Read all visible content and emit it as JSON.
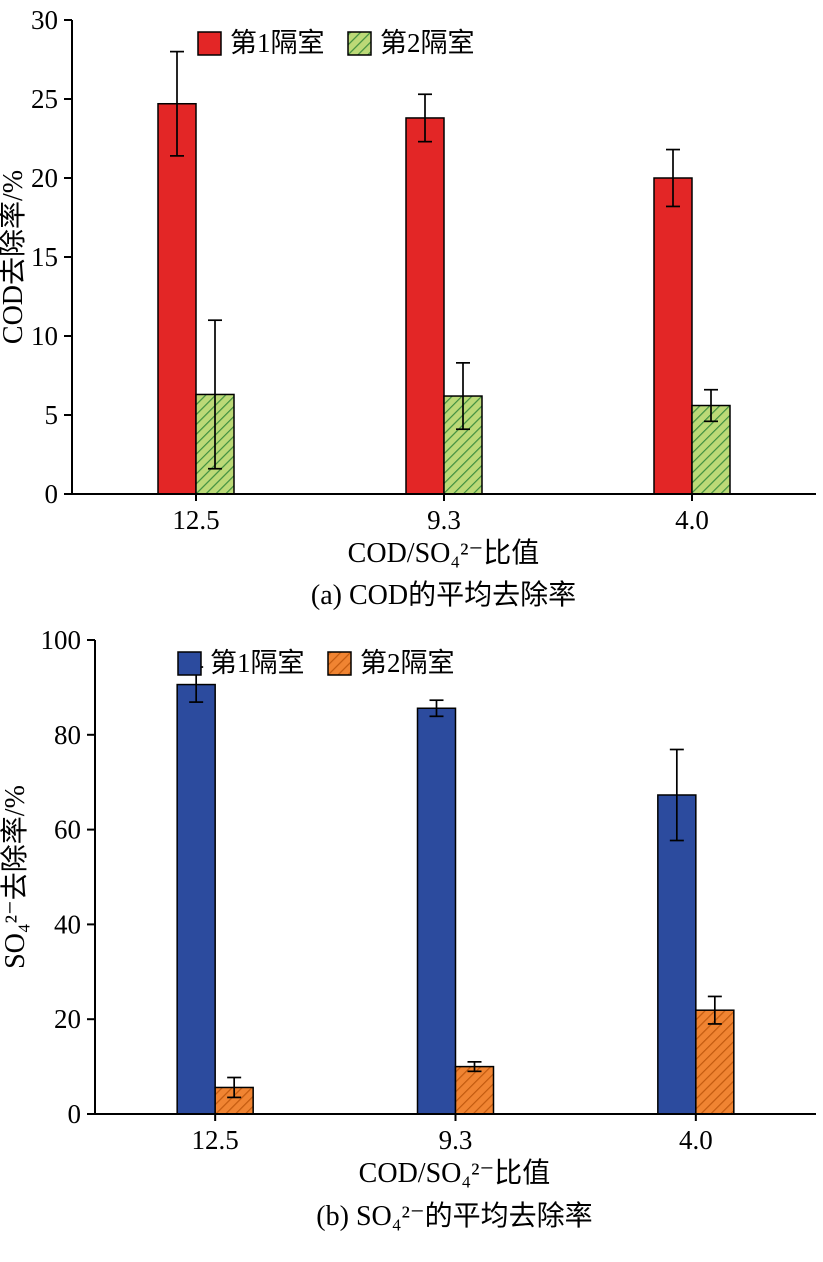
{
  "colors": {
    "ink": "#000000",
    "background": "#ffffff"
  },
  "chart_data": [
    {
      "type": "bar",
      "title": "(a) COD的平均去除率",
      "xlabel": "COD/SO₄²⁻比值",
      "ylabel": "COD去除率/%",
      "categories": [
        "12.5",
        "9.3",
        "4.0"
      ],
      "ylim": [
        0,
        30
      ],
      "ytick_step": 5,
      "grid": false,
      "legend_position": "top-inside",
      "series": [
        {
          "name": "第1隔室",
          "values": [
            24.7,
            23.8,
            20.0
          ],
          "errors": [
            3.3,
            1.5,
            1.8
          ],
          "style": "solid",
          "fill": "#e32626",
          "hatch": null
        },
        {
          "name": "第2隔室",
          "values": [
            6.3,
            6.2,
            5.6
          ],
          "errors": [
            4.7,
            2.1,
            1.0
          ],
          "style": "hatch",
          "fill": "#bcd977",
          "hatch": "#3f8f3f"
        }
      ]
    },
    {
      "type": "bar",
      "title": "(b) SO₄²⁻的平均去除率",
      "xlabel": "COD/SO₄²⁻比值",
      "ylabel": "SO₄²⁻去除率/%",
      "categories": [
        "12.5",
        "9.3",
        "4.0"
      ],
      "ylim": [
        0,
        100
      ],
      "ytick_step": 20,
      "grid": false,
      "legend_position": "top-inside",
      "series": [
        {
          "name": "第1隔室",
          "values": [
            90.6,
            85.6,
            67.3
          ],
          "errors": [
            3.7,
            1.7,
            9.6
          ],
          "style": "solid",
          "fill": "#2c4b9e",
          "hatch": null
        },
        {
          "name": "第2隔室",
          "values": [
            5.6,
            10.0,
            21.9
          ],
          "errors": [
            2.1,
            1.0,
            2.9
          ],
          "style": "hatch",
          "fill": "#f08432",
          "hatch": "#c25a0f"
        }
      ]
    }
  ]
}
